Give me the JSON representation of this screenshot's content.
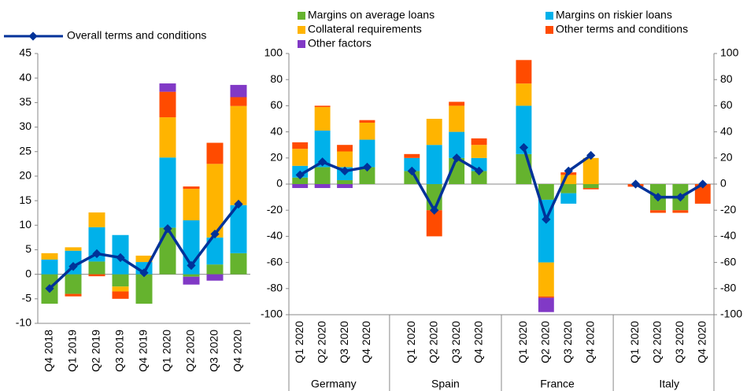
{
  "chart_data": [
    {
      "type": "bar-line",
      "categories": [
        "Q4 2018",
        "Q1 2019",
        "Q2 2019",
        "Q3 2019",
        "Q4 2019",
        "Q1 2020",
        "Q2 2020",
        "Q3 2020",
        "Q4 2020"
      ],
      "ylim": [
        -10,
        45
      ],
      "yticks": [
        -10,
        -5,
        0,
        5,
        10,
        15,
        20,
        25,
        30,
        35,
        40,
        45
      ],
      "series": [
        {
          "color": "#65b32e",
          "values": [
            -6,
            -4,
            2.6,
            -2.5,
            -6,
            9.5,
            -0.5,
            2,
            4.3
          ]
        },
        {
          "color": "#00b1ea",
          "values": [
            3,
            4.8,
            7,
            8,
            2.5,
            14.3,
            11,
            5.5,
            9.8
          ]
        },
        {
          "color": "#ffb400",
          "values": [
            1.3,
            0.7,
            3,
            -1,
            1.3,
            8.2,
            6.4,
            15,
            20.2
          ]
        },
        {
          "color": "#ff4b00",
          "values": [
            0,
            -0.5,
            -0.4,
            -1.5,
            0,
            5.2,
            0.5,
            4.3,
            1.8
          ]
        },
        {
          "color": "#8139c6",
          "values": [
            0,
            0,
            0,
            0,
            0,
            1.7,
            -1.6,
            -1.3,
            2.5
          ]
        },
        {
          "type": "line",
          "name": "Overall terms and conditions",
          "color": "#003299",
          "values": [
            -2.9,
            1.6,
            4.2,
            3.4,
            0.3,
            9.3,
            1.8,
            8.2,
            14.3
          ]
        }
      ]
    },
    {
      "type": "bar-line",
      "groups": [
        "Germany",
        "Spain",
        "France",
        "Italy"
      ],
      "categories": [
        "Q1 2020",
        "Q2 2020",
        "Q3 2020",
        "Q4 2020",
        "Q1 2020",
        "Q2 2020",
        "Q3 2020",
        "Q4 2020",
        "Q1 2020",
        "Q2 2020",
        "Q3 2020",
        "Q4 2020",
        "Q1 2020",
        "Q2 2020",
        "Q3 2020",
        "Q4 2020"
      ],
      "ylim": [
        -100,
        100
      ],
      "yticks": [
        -100,
        -80,
        -60,
        -40,
        -20,
        0,
        20,
        40,
        60,
        80,
        100
      ],
      "y2lim": [
        -100,
        100
      ],
      "y2ticks": [
        -100,
        -80,
        -60,
        -40,
        -20,
        0,
        20,
        40,
        60,
        80,
        100
      ],
      "series": [
        {
          "name": "Margins on average loans",
          "color": "#65b32e",
          "values": [
            5,
            13,
            3,
            13,
            10,
            -20,
            20,
            10,
            23,
            -12,
            -7,
            -3,
            0,
            -20,
            -20,
            0
          ]
        },
        {
          "name": "Margins on riskier loans",
          "color": "#00b1ea",
          "values": [
            9,
            28,
            10,
            21,
            10,
            30,
            20,
            10,
            37,
            -48,
            -8,
            0,
            0,
            0,
            0,
            0
          ]
        },
        {
          "name": "Collateral requirements",
          "color": "#ffb400",
          "values": [
            13,
            18,
            12,
            13,
            0,
            20,
            20,
            10,
            17,
            -26,
            7,
            20,
            0,
            0,
            0,
            0
          ]
        },
        {
          "name": "Other terms and conditions",
          "color": "#ff4b00",
          "values": [
            5,
            1,
            5,
            2,
            3,
            -20,
            3,
            5,
            18,
            -1,
            2,
            -1,
            -2,
            -2,
            -2,
            -15
          ]
        },
        {
          "name": "Other factors",
          "color": "#8139c6",
          "values": [
            -3,
            -3,
            -3,
            0,
            0,
            0,
            0,
            0,
            0,
            -11,
            0,
            0,
            0,
            0,
            0,
            0
          ]
        },
        {
          "type": "line",
          "color": "#003299",
          "values": [
            7,
            17,
            10,
            13,
            10,
            -20,
            20,
            10,
            28,
            -27,
            10,
            22,
            0,
            -10,
            -10,
            0
          ]
        }
      ]
    }
  ]
}
